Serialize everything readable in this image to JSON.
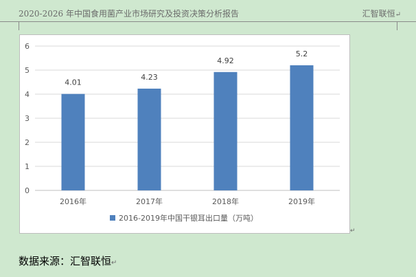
{
  "header": {
    "left_text": "2020-2026 年中国食用菌产业市场研究及投资决策分析报告",
    "right_text": "汇智联恒"
  },
  "paragraph_mark": "↵",
  "footer": {
    "text": "数据来源：汇智联恒"
  },
  "colors": {
    "bar": "#4f81bd",
    "grid": "#d9d9d9",
    "page_bg": "#cfe8cf"
  },
  "chart_data": {
    "type": "bar",
    "categories": [
      "2016年",
      "2017年",
      "2018年",
      "2019年"
    ],
    "series": [
      {
        "name": "2016-2019年中国干银耳出口量（万吨）",
        "values": [
          4.01,
          4.23,
          4.92,
          5.2
        ]
      }
    ],
    "data_labels": [
      "4.01",
      "4.23",
      "4.92",
      "5.2"
    ],
    "ylim": [
      0,
      6
    ],
    "yticks": [
      0,
      1,
      2,
      3,
      4,
      5,
      6
    ],
    "grid": true,
    "legend": "bottom"
  }
}
